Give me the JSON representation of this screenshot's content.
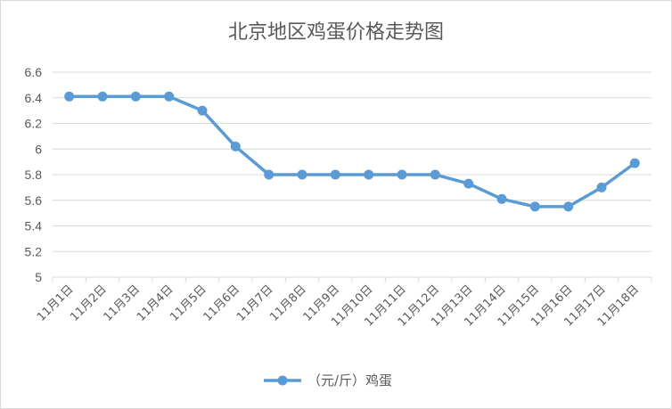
{
  "chart_data": {
    "type": "line",
    "title": "北京地区鸡蛋价格走势图",
    "categories": [
      "11月1日",
      "11月2日",
      "11月3日",
      "11月4日",
      "11月5日",
      "11月6日",
      "11月7日",
      "11月8日",
      "11月9日",
      "11月10日",
      "11月11日",
      "11月12日",
      "11月13日",
      "11月14日",
      "11月15日",
      "11月16日",
      "11月17日",
      "11月18日"
    ],
    "series": [
      {
        "name": "（元/斤）鸡蛋",
        "values": [
          6.41,
          6.41,
          6.41,
          6.41,
          6.3,
          6.02,
          5.8,
          5.8,
          5.8,
          5.8,
          5.8,
          5.8,
          5.73,
          5.61,
          5.55,
          5.55,
          5.7,
          5.89
        ],
        "color": "#5b9bd5"
      }
    ],
    "ylim": [
      5,
      6.6
    ],
    "yticks": [
      "5",
      "5.2",
      "5.4",
      "5.6",
      "5.8",
      "6",
      "6.2",
      "6.4",
      "6.6"
    ],
    "grid": true,
    "legend": "bottom-center"
  }
}
